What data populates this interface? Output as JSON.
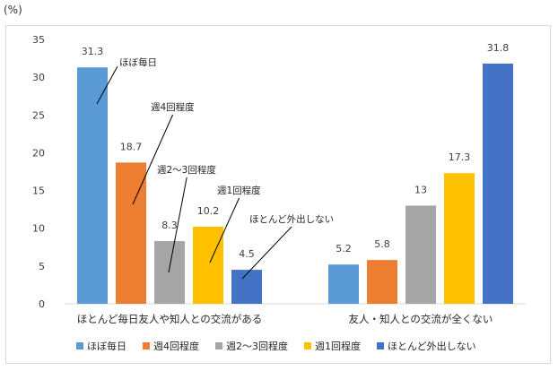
{
  "chart_data": {
    "type": "bar",
    "unit_label": "(%)",
    "categories": [
      "ほとんど毎日友人や知人との交流がある",
      "友人・知人との交流が全くない"
    ],
    "series": [
      {
        "name": "ほぼ毎日",
        "color": "#5b9bd5",
        "values": [
          31.3,
          5.2
        ],
        "labels": [
          "31.3",
          "5.2"
        ]
      },
      {
        "name": "週4回程度",
        "color": "#ed7d31",
        "values": [
          18.7,
          5.8
        ],
        "labels": [
          "18.7",
          "5.8"
        ]
      },
      {
        "name": "週2～3回程度",
        "color": "#a5a5a5",
        "values": [
          8.3,
          13
        ],
        "labels": [
          "8.3",
          "13"
        ]
      },
      {
        "name": "週1回程度",
        "color": "#ffc000",
        "values": [
          10.2,
          17.3
        ],
        "labels": [
          "10.2",
          "17.3"
        ]
      },
      {
        "name": "ほとんど外出しない",
        "color": "#4472c4",
        "values": [
          4.5,
          31.8
        ],
        "labels": [
          "4.5",
          "31.8"
        ]
      }
    ],
    "ylim": [
      0,
      35
    ],
    "yticks": [
      0,
      5,
      10,
      15,
      20,
      25,
      30,
      35
    ],
    "grid": false,
    "legend_position": "bottom"
  }
}
